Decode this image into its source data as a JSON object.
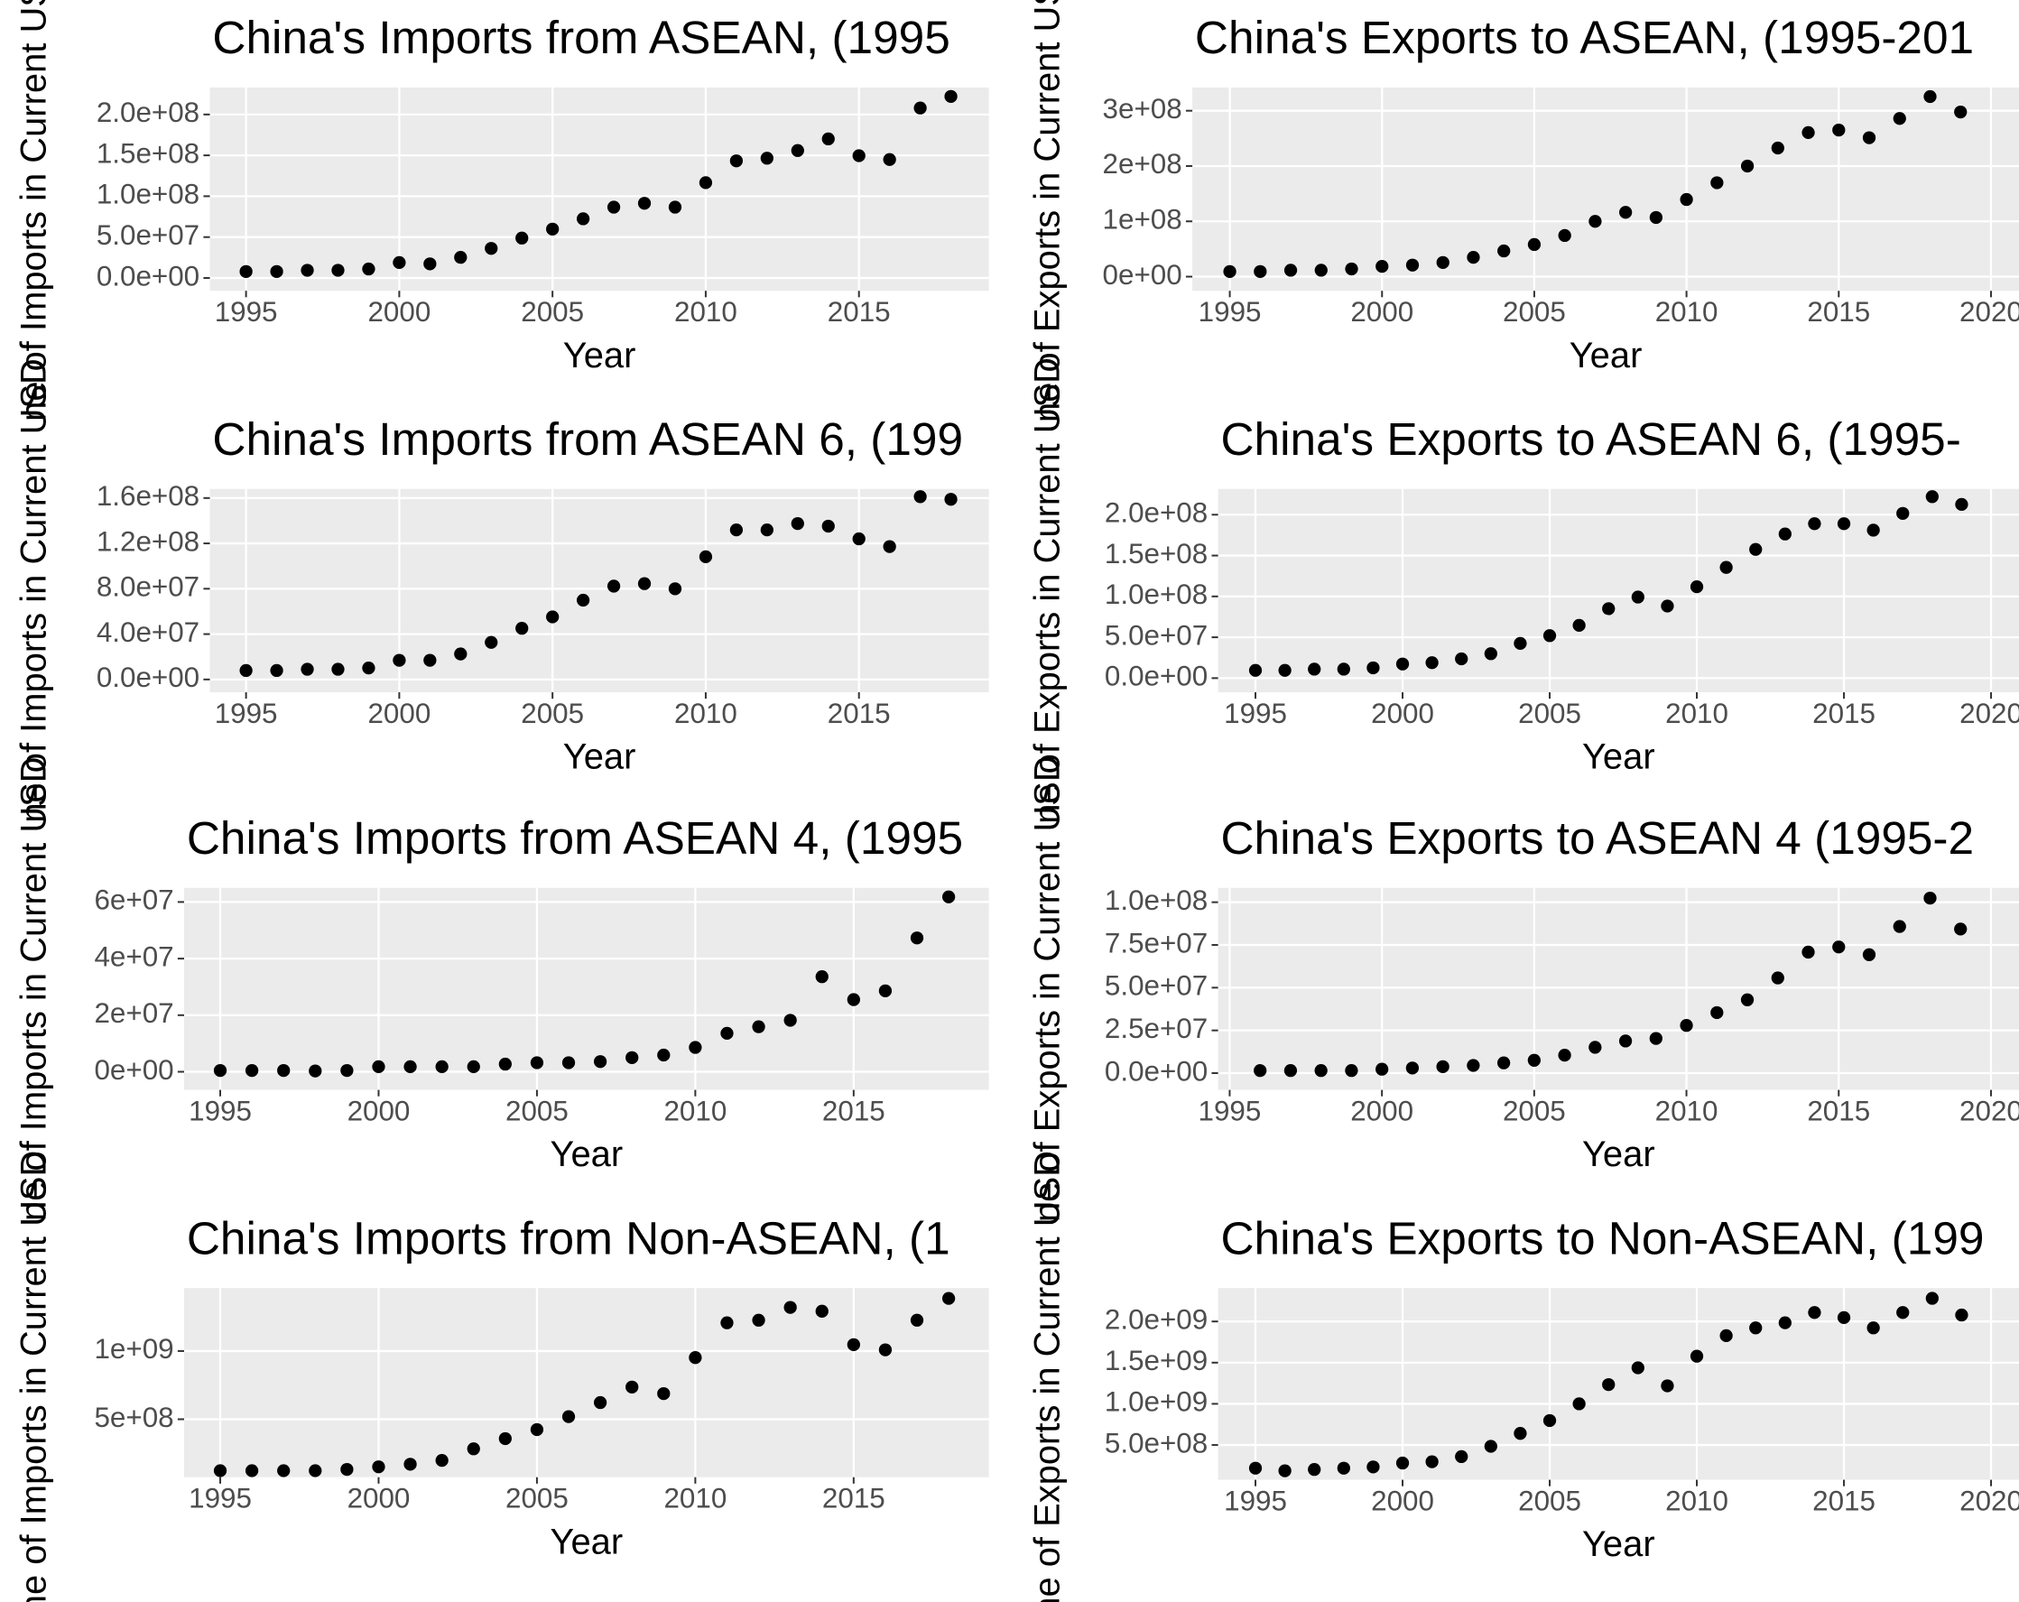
{
  "chart_data": [
    {
      "type": "scatter",
      "title": "China's Imports from ASEAN, (1995",
      "xlabel": "Year",
      "ylabel": "ne of Imports in Current USD",
      "color": "#000000",
      "x": [
        1995,
        1996,
        1997,
        1998,
        1999,
        2000,
        2001,
        2002,
        2003,
        2004,
        2005,
        2006,
        2007,
        2008,
        2009,
        2010,
        2011,
        2012,
        2013,
        2014,
        2015,
        2016,
        2017,
        2018
      ],
      "values": [
        7900000.0,
        7900000.0,
        9400000.0,
        9400000.0,
        11000000.0,
        18900000.0,
        17300000.0,
        25200000.0,
        36200000.0,
        48800000.0,
        59800000.0,
        72400000.0,
        86600000.0,
        91400000.0,
        86600000.0,
        116600000.0,
        143300000.0,
        146500000.0,
        155900000.0,
        170100000.0,
        149600000.0,
        144900000.0,
        207900000.0,
        222100000.0
      ],
      "xlim": [
        1993.82,
        2019.24
      ],
      "ylim": [
        -15700000.0,
        233000000.0
      ],
      "xticks": [
        1995,
        2000,
        2005,
        2010,
        2015
      ],
      "yticks": [
        {
          "value": 0,
          "label": "0.0e+00"
        },
        {
          "value": 50000000.0,
          "label": "5.0e+07"
        },
        {
          "value": 100000000.0,
          "label": "1.0e+08"
        },
        {
          "value": 150000000.0,
          "label": "1.5e+08"
        },
        {
          "value": 200000000.0,
          "label": "2.0e+08"
        }
      ]
    },
    {
      "type": "scatter",
      "title": "China's Exports to ASEAN, (1995-201",
      "xlabel": "Year",
      "ylabel": "ne of Exports in Current USD",
      "color": "#000000",
      "x": [
        1995,
        1996,
        1997,
        1998,
        1999,
        2000,
        2001,
        2002,
        2003,
        2004,
        2005,
        2006,
        2007,
        2008,
        2009,
        2010,
        2011,
        2012,
        2013,
        2014,
        2015,
        2016,
        2017,
        2018,
        2019
      ],
      "values": [
        9300000.0,
        9300000.0,
        11600000.0,
        11600000.0,
        14000000.0,
        18600000.0,
        20900000.0,
        25600000.0,
        34900000.0,
        46500000.0,
        58100000.0,
        74400000.0,
        100000000.0,
        116300000.0,
        107000000.0,
        139500000.0,
        169800000.0,
        200000000.0,
        232600000.0,
        260500000.0,
        265100000.0,
        251200000.0,
        286000000.0,
        325600000.0,
        297700000.0
      ],
      "xlim": [
        1993.77,
        2020.92
      ],
      "ylim": [
        -25600000.0,
        342000000.0
      ],
      "xticks": [
        1995,
        2000,
        2005,
        2010,
        2015,
        2020
      ],
      "yticks": [
        {
          "value": 0,
          "label": "0e+00"
        },
        {
          "value": 100000000.0,
          "label": "1e+08"
        },
        {
          "value": 200000000.0,
          "label": "2e+08"
        },
        {
          "value": 300000000.0,
          "label": "3e+08"
        }
      ]
    },
    {
      "type": "scatter",
      "title": "China's Imports from ASEAN 6, (199",
      "xlabel": "Year",
      "ylabel": "ne of Imports in Current USD",
      "color": "#000000",
      "x": [
        1995,
        1996,
        1997,
        1998,
        1999,
        2000,
        2001,
        2002,
        2003,
        2004,
        2005,
        2006,
        2007,
        2008,
        2009,
        2010,
        2011,
        2012,
        2013,
        2014,
        2015,
        2016,
        2017,
        2018
      ],
      "values": [
        7900000.0,
        7900000.0,
        9000000.0,
        9000000.0,
        10100000.0,
        16900000.0,
        16900000.0,
        22500000.0,
        32700000.0,
        45100000.0,
        55200000.0,
        69900000.0,
        82300000.0,
        84500000.0,
        80000000.0,
        108200000.0,
        131900000.0,
        131900000.0,
        137500000.0,
        135200000.0,
        124000000.0,
        117200000.0,
        161200000.0,
        158900000.0
      ],
      "xlim": [
        1993.82,
        2019.24
      ],
      "ylim": [
        -11300000.0,
        168000000.0
      ],
      "xticks": [
        1995,
        2000,
        2005,
        2010,
        2015
      ],
      "yticks": [
        {
          "value": 0,
          "label": "0.0e+00"
        },
        {
          "value": 40000000.0,
          "label": "4.0e+07"
        },
        {
          "value": 80000000.0,
          "label": "8.0e+07"
        },
        {
          "value": 120000000.0,
          "label": "1.2e+08"
        },
        {
          "value": 160000000.0,
          "label": "1.6e+08"
        }
      ]
    },
    {
      "type": "scatter",
      "title": "China's Exports to ASEAN 6, (1995-",
      "xlabel": "Year",
      "ylabel": "ne of Exports in Current USD",
      "color": "#000000",
      "x": [
        1995,
        1996,
        1997,
        1998,
        1999,
        2000,
        2001,
        2002,
        2003,
        2004,
        2005,
        2006,
        2007,
        2008,
        2009,
        2010,
        2011,
        2012,
        2013,
        2014,
        2015,
        2016,
        2017,
        2018,
        2019
      ],
      "values": [
        9500000.0,
        9500000.0,
        11000000.0,
        11000000.0,
        12600000.0,
        17300000.0,
        18900000.0,
        23600000.0,
        29900000.0,
        42500000.0,
        52000000.0,
        64600000.0,
        85000000.0,
        99200000.0,
        88200000.0,
        111800000.0,
        135500000.0,
        157500000.0,
        176400000.0,
        189000000.0,
        189000000.0,
        181100000.0,
        201600000.0,
        222100000.0,
        212600000.0
      ],
      "xlim": [
        1993.73,
        2020.95
      ],
      "ylim": [
        -17300000.0,
        231500000.0
      ],
      "xticks": [
        1995,
        2000,
        2005,
        2010,
        2015,
        2020
      ],
      "yticks": [
        {
          "value": 0,
          "label": "0.0e+00"
        },
        {
          "value": 50000000.0,
          "label": "5.0e+07"
        },
        {
          "value": 100000000.0,
          "label": "1.0e+08"
        },
        {
          "value": 150000000.0,
          "label": "1.5e+08"
        },
        {
          "value": 200000000.0,
          "label": "2.0e+08"
        }
      ]
    },
    {
      "type": "scatter",
      "title": "China's Imports from ASEAN 4, (1995",
      "xlabel": "Year",
      "ylabel": "ne of Imports in Current USD",
      "color": "#000000",
      "x": [
        1995,
        1996,
        1997,
        1998,
        1999,
        2000,
        2001,
        2002,
        2003,
        2004,
        2005,
        2006,
        2007,
        2008,
        2009,
        2010,
        2011,
        2012,
        2013,
        2014,
        2015,
        2016,
        2017,
        2018
      ],
      "values": [
        450000.0,
        450000.0,
        450000.0,
        300000.0,
        450000.0,
        1800000.0,
        1800000.0,
        1800000.0,
        1800000.0,
        2700000.0,
        3200000.0,
        3200000.0,
        3600000.0,
        5000000.0,
        5900000.0,
        8600000.0,
        13600000.0,
        15900000.0,
        18200000.0,
        33600000.0,
        25500000.0,
        28600000.0,
        47300000.0,
        61800000.0
      ],
      "xlim": [
        1993.86,
        2019.27
      ],
      "ylim": [
        -6400000.0,
        65000000.0
      ],
      "xticks": [
        1995,
        2000,
        2005,
        2010,
        2015
      ],
      "yticks": [
        {
          "value": 0,
          "label": "0e+00"
        },
        {
          "value": 20000000.0,
          "label": "2e+07"
        },
        {
          "value": 40000000.0,
          "label": "4e+07"
        },
        {
          "value": 60000000.0,
          "label": "6e+07"
        }
      ]
    },
    {
      "type": "scatter",
      "title": "China's Exports to ASEAN 4 (1995-2",
      "xlabel": "Year",
      "ylabel": "ne of Exports in Current USD",
      "color": "#000000",
      "x": [
        1996,
        1997,
        1998,
        1999,
        2000,
        2001,
        2002,
        2003,
        2004,
        2005,
        2006,
        2007,
        2008,
        2009,
        2010,
        2011,
        2012,
        2013,
        2014,
        2015,
        2016,
        2017,
        2018,
        2019
      ],
      "values": [
        1500000.0,
        1500000.0,
        1500000.0,
        1500000.0,
        2300000.0,
        3000000.0,
        3800000.0,
        4500000.0,
        6000000.0,
        7500000.0,
        10500000.0,
        15100000.0,
        18800000.0,
        20300000.0,
        27900000.0,
        35400000.0,
        42900000.0,
        55700000.0,
        70800000.0,
        73800000.0,
        69300000.0,
        85800000.0,
        102400000.0,
        84300000.0
      ],
      "xlim": [
        1994.62,
        2020.92
      ],
      "ylim": [
        -9800000.0,
        108400000.0
      ],
      "xticks": [
        1995,
        2000,
        2005,
        2010,
        2015,
        2020
      ],
      "yticks": [
        {
          "value": 0,
          "label": "0.0e+00"
        },
        {
          "value": 25000000.0,
          "label": "2.5e+07"
        },
        {
          "value": 50000000.0,
          "label": "5.0e+07"
        },
        {
          "value": 75000000.0,
          "label": "7.5e+07"
        },
        {
          "value": 100000000.0,
          "label": "1.0e+08"
        }
      ]
    },
    {
      "type": "scatter",
      "title": "China's Imports from Non-ASEAN, (1",
      "xlabel": "Year",
      "ylabel": "ne of Imports in Current USD",
      "color": "#000000",
      "x": [
        1995,
        1996,
        1997,
        1998,
        1999,
        2000,
        2001,
        2002,
        2003,
        2004,
        2005,
        2006,
        2007,
        2008,
        2009,
        2010,
        2011,
        2012,
        2013,
        2014,
        2015,
        2016,
        2017,
        2018
      ],
      "values": [
        122600000.0,
        122600000.0,
        122600000.0,
        122600000.0,
        132000000.0,
        151000000.0,
        170000000.0,
        198000000.0,
        283000000.0,
        358000000.0,
        424000000.0,
        519000000.0,
        622000000.0,
        736000000.0,
        688000000.0,
        952000000.0,
        1207000000.0,
        1226000000.0,
        1320000000.0,
        1292000000.0,
        1047000000.0,
        1009000000.0,
        1226000000.0,
        1386000000.0
      ],
      "xlim": [
        1993.86,
        2019.27
      ],
      "ylim": [
        75000000.0,
        1462000000.0
      ],
      "xticks": [
        1995,
        2000,
        2005,
        2010,
        2015
      ],
      "yticks": [
        {
          "value": 500000000.0,
          "label": "5e+08"
        },
        {
          "value": 1000000000.0,
          "label": "1e+09"
        }
      ]
    },
    {
      "type": "scatter",
      "title": "China's Exports to Non-ASEAN, (199",
      "xlabel": "Year",
      "ylabel": "ne of Exports in Current USD",
      "color": "#000000",
      "x": [
        1995,
        1996,
        1997,
        1998,
        1999,
        2000,
        2001,
        2002,
        2003,
        2004,
        2005,
        2006,
        2007,
        2008,
        2009,
        2010,
        2011,
        2012,
        2013,
        2014,
        2015,
        2016,
        2017,
        2018,
        2019
      ],
      "values": [
        219000000.0,
        187500000.0,
        203000000.0,
        219000000.0,
        234000000.0,
        281000000.0,
        297000000.0,
        359000000.0,
        484000000.0,
        641000000.0,
        797000000.0,
        1000000000.0,
        1234000000.0,
        1437500000.0,
        1219000000.0,
        1578000000.0,
        1828000000.0,
        1922000000.0,
        1984000000.0,
        2109000000.0,
        2047000000.0,
        1922000000.0,
        2109000000.0,
        2281000000.0,
        2078000000.0
      ],
      "xlim": [
        1993.73,
        2020.95
      ],
      "ylim": [
        78000000.0,
        2406000000.0
      ],
      "xticks": [
        1995,
        2000,
        2005,
        2010,
        2015,
        2020
      ],
      "yticks": [
        {
          "value": 500000000.0,
          "label": "5.0e+08"
        },
        {
          "value": 1000000000.0,
          "label": "1.0e+09"
        },
        {
          "value": 1500000000.0,
          "label": "1.5e+09"
        },
        {
          "value": 2000000000.0,
          "label": "2.0e+09"
        }
      ]
    }
  ]
}
